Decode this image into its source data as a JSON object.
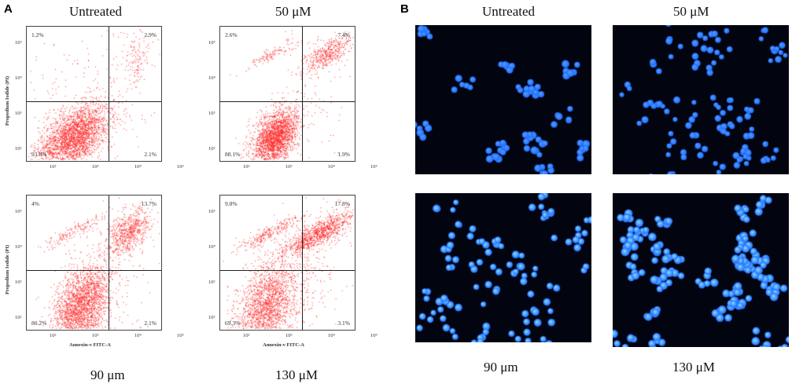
{
  "panel_a": {
    "letter": "A",
    "labels": {
      "untreated": "Untreated",
      "c50": "50 μM",
      "c90": "90 μm",
      "c130": "130 μM"
    },
    "y_axis_title": "Propodium Iodide (PI)",
    "x_axis_title": "Annexin-v FITC-A",
    "y_ticks": [
      "10⁵",
      "10⁴",
      "10³",
      "10²"
    ],
    "x_ticks": [
      "10²",
      "10³",
      "10⁴",
      "10⁵"
    ],
    "plots": [
      {
        "id": "untreated",
        "q_ul": "1.2%",
        "q_ur": "2.9%",
        "q_ll": "93.8%",
        "q_lr": "2.1%",
        "dot_color": "#ff2a2a"
      },
      {
        "id": "50uM",
        "q_ul": "2.6%",
        "q_ur": "7.4%",
        "q_ll": "88.1%",
        "q_lr": "1.9%",
        "dot_color": "#ff2a2a"
      },
      {
        "id": "90um",
        "q_ul": "4%",
        "q_ur": "13.7%",
        "q_ll": "80.2%",
        "q_lr": "2.1%",
        "dot_color": "#ff2a2a"
      },
      {
        "id": "130uM",
        "q_ul": "9.8%",
        "q_ur": "17.8%",
        "q_ll": "69.3%",
        "q_lr": "3.1%",
        "dot_color": "#ff2a2a"
      }
    ]
  },
  "panel_b": {
    "letter": "B",
    "labels": {
      "untreated": "Untreated",
      "c50": "50 μM",
      "c90": "90 μm",
      "c130": "130 μM"
    },
    "image_background": "#020410",
    "nuclei_color": "#1f6bff"
  }
}
